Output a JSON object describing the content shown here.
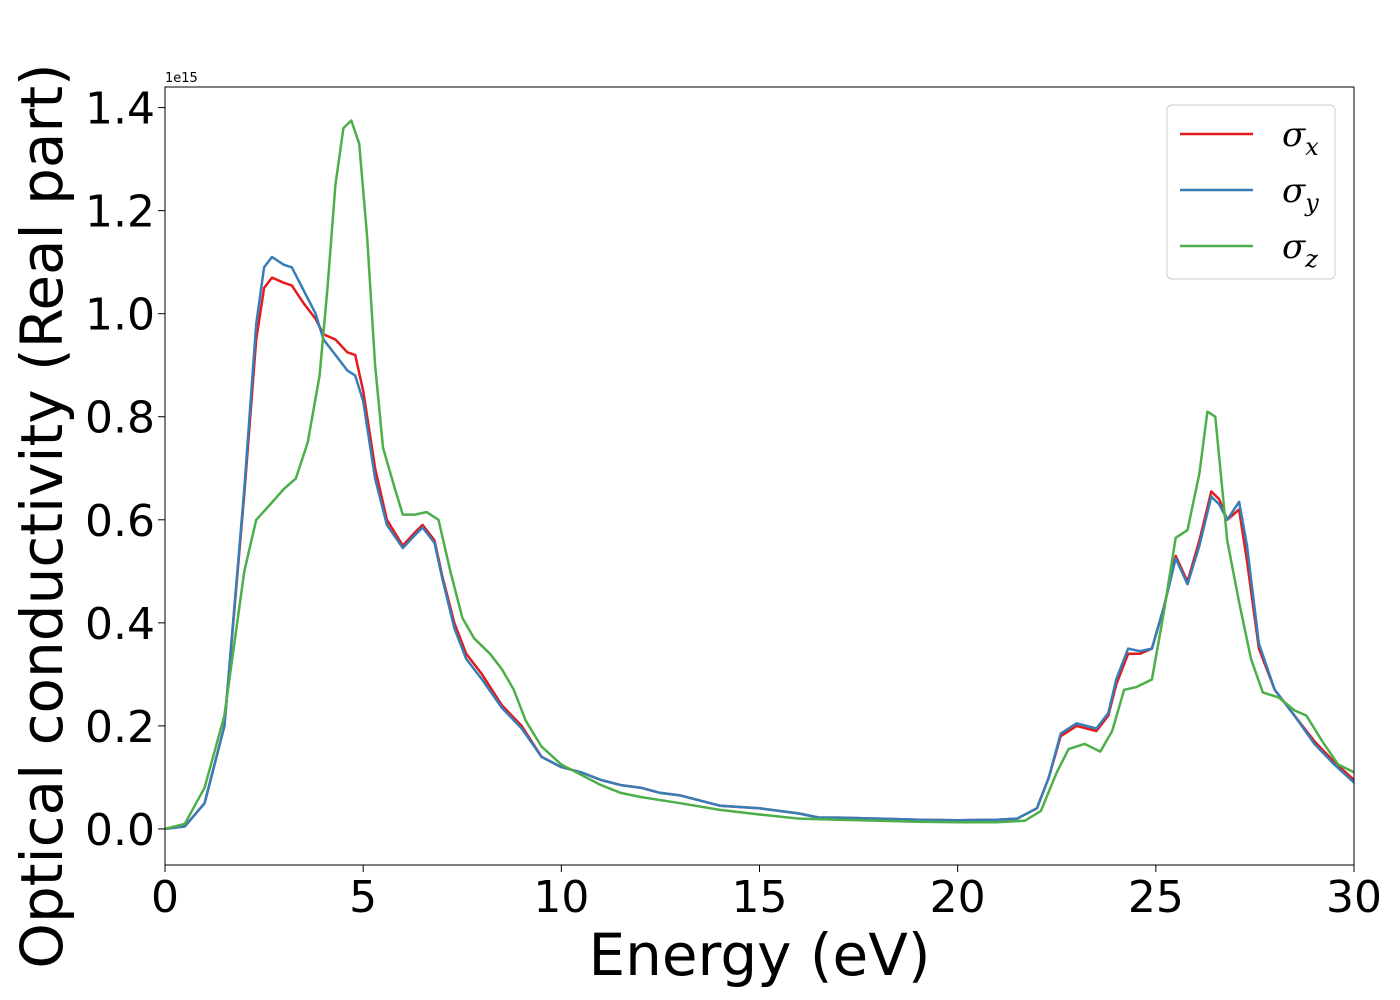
{
  "chart_data": {
    "type": "line",
    "xlabel": "Energy (eV)",
    "ylabel": "Optical conductivity (Real part)",
    "y_scale_label": "1e15",
    "xlim": [
      0,
      30
    ],
    "ylim": [
      -0.07,
      1.44
    ],
    "x_ticks": [
      0,
      5,
      10,
      15,
      20,
      25,
      30
    ],
    "y_ticks": [
      0.0,
      0.2,
      0.4,
      0.6,
      0.8,
      1.0,
      1.2,
      1.4
    ],
    "x_tick_labels": [
      "0",
      "5",
      "10",
      "15",
      "20",
      "25",
      "30"
    ],
    "y_tick_labels": [
      "0.0",
      "0.2",
      "0.4",
      "0.6",
      "0.8",
      "1.0",
      "1.2",
      "1.4"
    ],
    "grid": false,
    "legend_position": "top-right",
    "series": [
      {
        "symbol": "σ",
        "subscript": "x",
        "color": "#e41a1c",
        "points": [
          [
            0,
            0
          ],
          [
            0.5,
            0.005
          ],
          [
            1,
            0.05
          ],
          [
            1.5,
            0.2
          ],
          [
            2,
            0.65
          ],
          [
            2.3,
            0.95
          ],
          [
            2.5,
            1.05
          ],
          [
            2.7,
            1.07
          ],
          [
            3,
            1.06
          ],
          [
            3.2,
            1.055
          ],
          [
            3.5,
            1.02
          ],
          [
            3.8,
            0.99
          ],
          [
            4,
            0.96
          ],
          [
            4.3,
            0.95
          ],
          [
            4.6,
            0.925
          ],
          [
            4.8,
            0.92
          ],
          [
            5,
            0.85
          ],
          [
            5.3,
            0.7
          ],
          [
            5.6,
            0.6
          ],
          [
            6,
            0.55
          ],
          [
            6.3,
            0.575
          ],
          [
            6.5,
            0.59
          ],
          [
            6.8,
            0.56
          ],
          [
            7,
            0.49
          ],
          [
            7.3,
            0.4
          ],
          [
            7.6,
            0.34
          ],
          [
            8,
            0.3
          ],
          [
            8.5,
            0.24
          ],
          [
            9,
            0.2
          ],
          [
            9.5,
            0.14
          ],
          [
            10,
            0.12
          ],
          [
            10.5,
            0.11
          ],
          [
            11,
            0.095
          ],
          [
            11.5,
            0.085
          ],
          [
            12,
            0.08
          ],
          [
            12.5,
            0.07
          ],
          [
            13,
            0.065
          ],
          [
            13.5,
            0.055
          ],
          [
            14,
            0.045
          ],
          [
            15,
            0.04
          ],
          [
            16,
            0.03
          ],
          [
            16.5,
            0.022
          ],
          [
            17,
            0.022
          ],
          [
            18,
            0.02
          ],
          [
            19,
            0.018
          ],
          [
            20,
            0.017
          ],
          [
            21,
            0.018
          ],
          [
            21.5,
            0.02
          ],
          [
            22,
            0.04
          ],
          [
            22.3,
            0.1
          ],
          [
            22.6,
            0.18
          ],
          [
            23,
            0.2
          ],
          [
            23.5,
            0.19
          ],
          [
            23.8,
            0.22
          ],
          [
            24,
            0.28
          ],
          [
            24.3,
            0.34
          ],
          [
            24.6,
            0.34
          ],
          [
            24.9,
            0.35
          ],
          [
            25.2,
            0.43
          ],
          [
            25.5,
            0.53
          ],
          [
            25.8,
            0.48
          ],
          [
            26.1,
            0.56
          ],
          [
            26.4,
            0.655
          ],
          [
            26.6,
            0.64
          ],
          [
            26.8,
            0.6
          ],
          [
            27.1,
            0.62
          ],
          [
            27.3,
            0.52
          ],
          [
            27.6,
            0.35
          ],
          [
            28,
            0.27
          ],
          [
            28.5,
            0.22
          ],
          [
            29,
            0.17
          ],
          [
            29.5,
            0.13
          ],
          [
            30,
            0.095
          ]
        ]
      },
      {
        "symbol": "σ",
        "subscript": "y",
        "color": "#377eb8",
        "points": [
          [
            0,
            0
          ],
          [
            0.5,
            0.005
          ],
          [
            1,
            0.05
          ],
          [
            1.5,
            0.2
          ],
          [
            2,
            0.66
          ],
          [
            2.3,
            0.98
          ],
          [
            2.5,
            1.09
          ],
          [
            2.7,
            1.11
          ],
          [
            3,
            1.095
          ],
          [
            3.2,
            1.09
          ],
          [
            3.5,
            1.045
          ],
          [
            3.8,
            1.0
          ],
          [
            4,
            0.95
          ],
          [
            4.3,
            0.92
          ],
          [
            4.6,
            0.89
          ],
          [
            4.8,
            0.88
          ],
          [
            5,
            0.83
          ],
          [
            5.3,
            0.68
          ],
          [
            5.6,
            0.59
          ],
          [
            6,
            0.545
          ],
          [
            6.3,
            0.57
          ],
          [
            6.5,
            0.585
          ],
          [
            6.8,
            0.555
          ],
          [
            7,
            0.485
          ],
          [
            7.3,
            0.39
          ],
          [
            7.6,
            0.33
          ],
          [
            8,
            0.29
          ],
          [
            8.5,
            0.235
          ],
          [
            9,
            0.195
          ],
          [
            9.5,
            0.14
          ],
          [
            10,
            0.12
          ],
          [
            10.5,
            0.11
          ],
          [
            11,
            0.095
          ],
          [
            11.5,
            0.085
          ],
          [
            12,
            0.08
          ],
          [
            12.5,
            0.07
          ],
          [
            13,
            0.065
          ],
          [
            13.5,
            0.055
          ],
          [
            14,
            0.045
          ],
          [
            15,
            0.04
          ],
          [
            16,
            0.03
          ],
          [
            16.5,
            0.022
          ],
          [
            17,
            0.022
          ],
          [
            18,
            0.02
          ],
          [
            19,
            0.018
          ],
          [
            20,
            0.017
          ],
          [
            21,
            0.018
          ],
          [
            21.5,
            0.02
          ],
          [
            22,
            0.04
          ],
          [
            22.3,
            0.1
          ],
          [
            22.6,
            0.185
          ],
          [
            23,
            0.205
          ],
          [
            23.5,
            0.195
          ],
          [
            23.8,
            0.225
          ],
          [
            24,
            0.29
          ],
          [
            24.3,
            0.35
          ],
          [
            24.6,
            0.345
          ],
          [
            24.9,
            0.35
          ],
          [
            25.2,
            0.43
          ],
          [
            25.5,
            0.525
          ],
          [
            25.8,
            0.475
          ],
          [
            26.1,
            0.55
          ],
          [
            26.4,
            0.645
          ],
          [
            26.6,
            0.63
          ],
          [
            26.8,
            0.6
          ],
          [
            27.1,
            0.635
          ],
          [
            27.3,
            0.55
          ],
          [
            27.6,
            0.36
          ],
          [
            28,
            0.27
          ],
          [
            28.5,
            0.22
          ],
          [
            29,
            0.165
          ],
          [
            29.5,
            0.125
          ],
          [
            30,
            0.09
          ]
        ]
      },
      {
        "symbol": "σ",
        "subscript": "z",
        "color": "#4daf4a",
        "points": [
          [
            0,
            0
          ],
          [
            0.5,
            0.01
          ],
          [
            1,
            0.08
          ],
          [
            1.5,
            0.22
          ],
          [
            2,
            0.5
          ],
          [
            2.3,
            0.6
          ],
          [
            2.6,
            0.625
          ],
          [
            3,
            0.66
          ],
          [
            3.3,
            0.68
          ],
          [
            3.6,
            0.75
          ],
          [
            3.9,
            0.88
          ],
          [
            4.1,
            1.05
          ],
          [
            4.3,
            1.25
          ],
          [
            4.5,
            1.36
          ],
          [
            4.7,
            1.375
          ],
          [
            4.9,
            1.33
          ],
          [
            5.1,
            1.15
          ],
          [
            5.3,
            0.9
          ],
          [
            5.5,
            0.74
          ],
          [
            5.8,
            0.66
          ],
          [
            6,
            0.61
          ],
          [
            6.3,
            0.61
          ],
          [
            6.6,
            0.615
          ],
          [
            6.9,
            0.6
          ],
          [
            7.2,
            0.5
          ],
          [
            7.5,
            0.41
          ],
          [
            7.8,
            0.37
          ],
          [
            8.2,
            0.34
          ],
          [
            8.5,
            0.31
          ],
          [
            8.8,
            0.27
          ],
          [
            9.1,
            0.21
          ],
          [
            9.5,
            0.16
          ],
          [
            10,
            0.125
          ],
          [
            10.5,
            0.105
          ],
          [
            11,
            0.085
          ],
          [
            11.5,
            0.07
          ],
          [
            12,
            0.062
          ],
          [
            13,
            0.05
          ],
          [
            14,
            0.037
          ],
          [
            15,
            0.028
          ],
          [
            16,
            0.02
          ],
          [
            17,
            0.018
          ],
          [
            18,
            0.016
          ],
          [
            19,
            0.014
          ],
          [
            20,
            0.013
          ],
          [
            21,
            0.013
          ],
          [
            21.7,
            0.016
          ],
          [
            22.1,
            0.035
          ],
          [
            22.5,
            0.11
          ],
          [
            22.8,
            0.155
          ],
          [
            23.2,
            0.165
          ],
          [
            23.6,
            0.15
          ],
          [
            23.9,
            0.19
          ],
          [
            24.2,
            0.27
          ],
          [
            24.5,
            0.275
          ],
          [
            24.9,
            0.29
          ],
          [
            25.2,
            0.42
          ],
          [
            25.5,
            0.565
          ],
          [
            25.8,
            0.58
          ],
          [
            26.1,
            0.69
          ],
          [
            26.3,
            0.81
          ],
          [
            26.5,
            0.8
          ],
          [
            26.8,
            0.56
          ],
          [
            27.1,
            0.44
          ],
          [
            27.4,
            0.33
          ],
          [
            27.7,
            0.265
          ],
          [
            28.1,
            0.255
          ],
          [
            28.5,
            0.23
          ],
          [
            28.8,
            0.22
          ],
          [
            29.2,
            0.17
          ],
          [
            29.6,
            0.125
          ],
          [
            30,
            0.11
          ]
        ]
      }
    ]
  }
}
